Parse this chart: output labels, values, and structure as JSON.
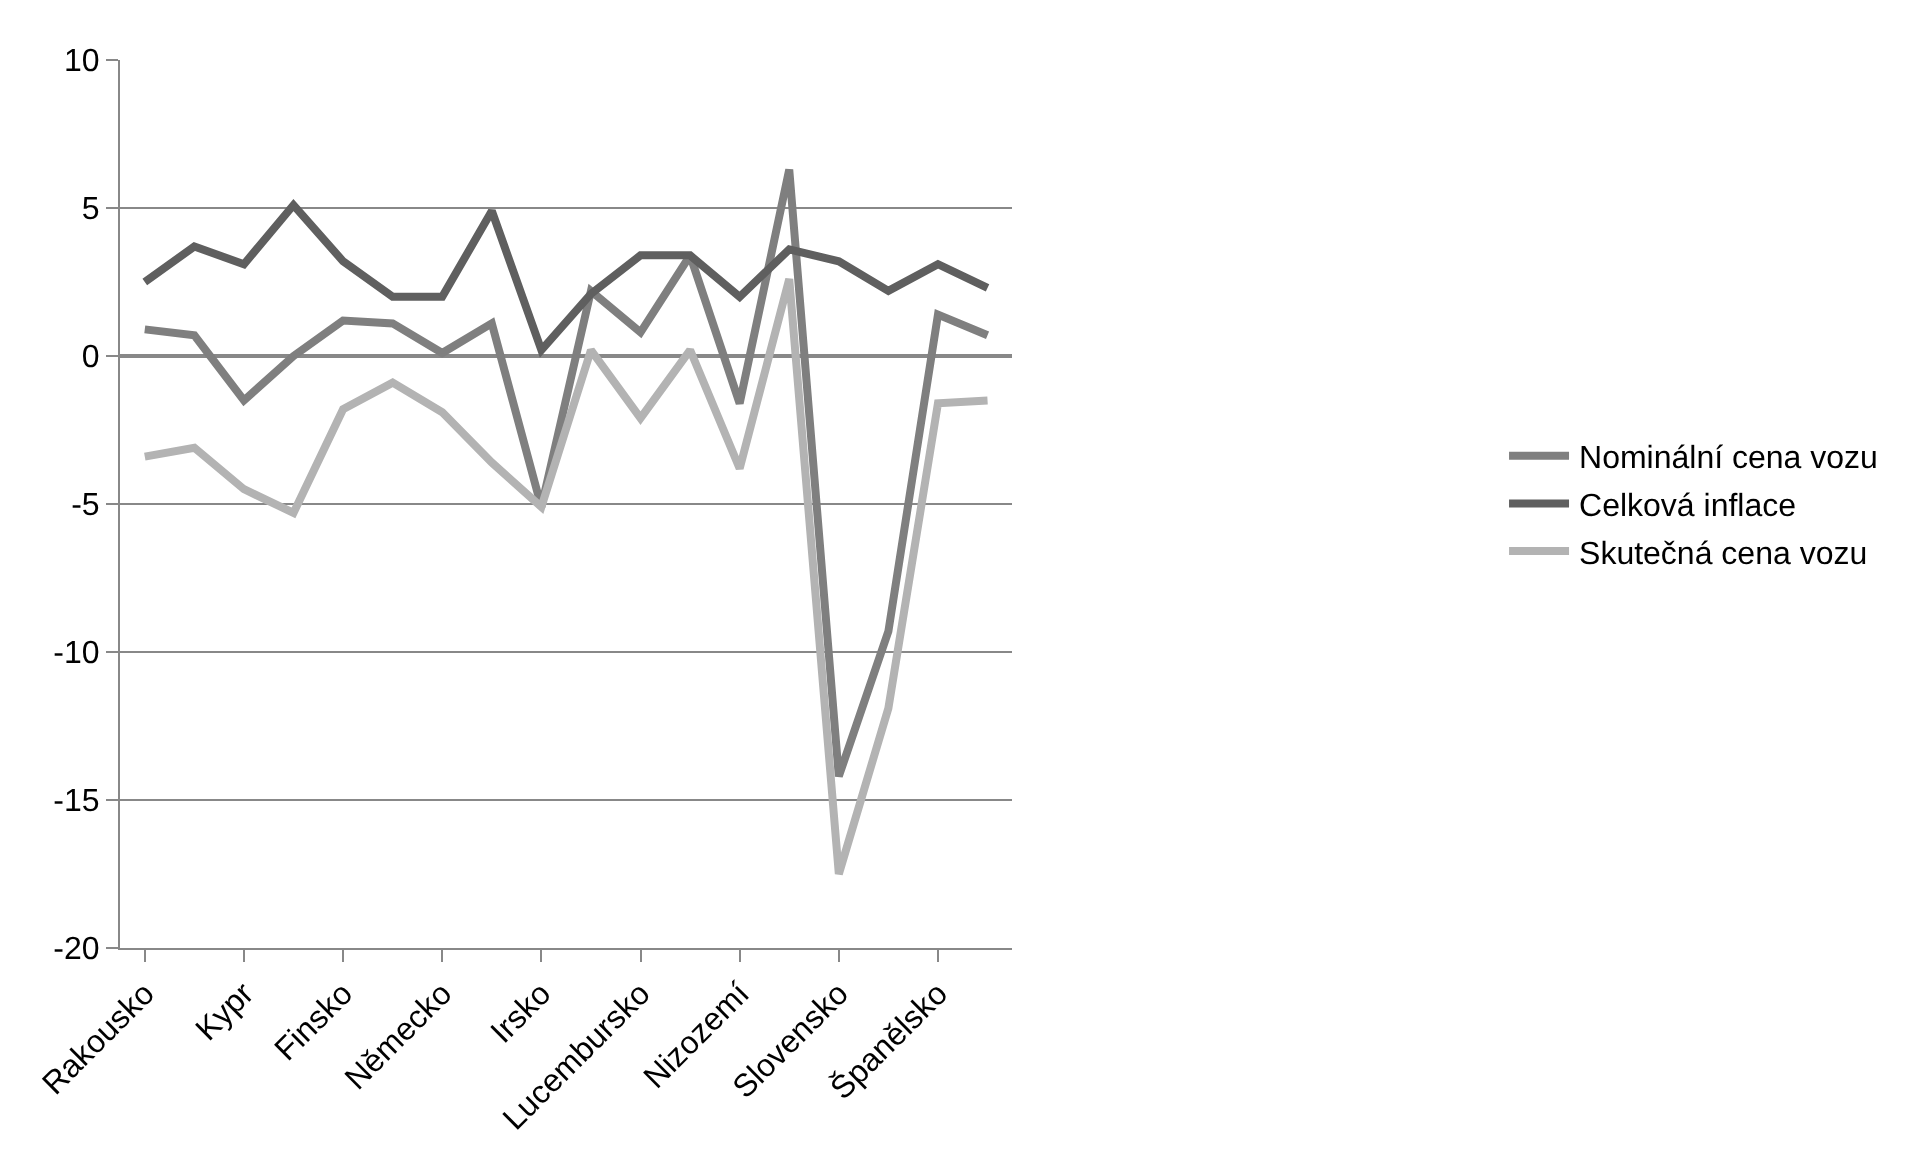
{
  "chart_data": {
    "type": "line",
    "categories": [
      "Rakousko",
      null,
      "Kypr",
      null,
      "Finsko",
      null,
      "Německo",
      null,
      "Irsko",
      null,
      "Lucembursko",
      null,
      "Nizozemí",
      null,
      "Slovensko",
      null,
      "Španělsko",
      null
    ],
    "series": [
      {
        "name": "Nominální cena vozu",
        "color": "#7f7f7f",
        "values": [
          0.9,
          0.7,
          -1.5,
          0.0,
          1.2,
          1.1,
          0.1,
          1.1,
          -5.1,
          2.2,
          0.8,
          3.4,
          -1.6,
          6.3,
          -14.2,
          -9.3,
          1.4,
          0.7
        ]
      },
      {
        "name": "Celková inflace",
        "color": "#5f5f5f",
        "values": [
          2.5,
          3.7,
          3.1,
          5.1,
          3.2,
          2.0,
          2.0,
          4.9,
          0.2,
          2.1,
          3.4,
          3.4,
          2.0,
          3.6,
          3.2,
          2.2,
          3.1,
          2.3
        ]
      },
      {
        "name": "Skutečná cena vozu",
        "color": "#b3b3b3",
        "values": [
          -3.4,
          -3.1,
          -4.5,
          -5.3,
          -1.8,
          -0.9,
          -1.9,
          -3.6,
          -5.1,
          0.2,
          -2.1,
          0.2,
          -3.8,
          2.6,
          -17.5,
          -11.9,
          -1.6,
          -1.5
        ]
      }
    ],
    "ylim": [
      -20,
      10
    ],
    "yticks": [
      -20,
      -15,
      -10,
      -5,
      0,
      5,
      10
    ],
    "grid": "y",
    "legend": "right",
    "marker": "none",
    "line_style": "solid"
  }
}
